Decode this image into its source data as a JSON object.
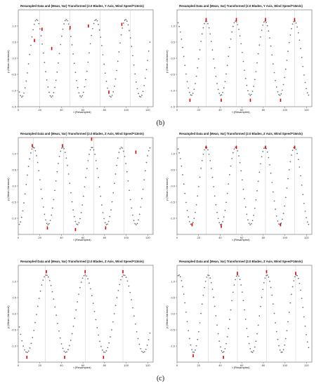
{
  "figure_labels": {
    "b": "(b)",
    "c": "(c)"
  },
  "chart_data": [
    {
      "type": "scatter",
      "title": "Resampled Data and (Mean, Var) Transformed (2.0 Blades, Y Axis, Wind Speed=13m/s)",
      "xlabel": "t (Resampled)",
      "ylabel": "y (Mean-Variance)",
      "xlim": [
        0,
        125
      ],
      "ylim": [
        -1.5,
        1.5
      ],
      "xticks": [
        0,
        20,
        40,
        60,
        80,
        100,
        120
      ],
      "yticks": [
        -1.5,
        -1.0,
        -0.5,
        0.0,
        0.5,
        1.0
      ],
      "vlines": [
        20,
        48,
        76,
        104
      ],
      "points": 115,
      "period": 27.5,
      "phase": 17,
      "amplitude": 1.2,
      "red_points": [
        [
          15,
          0.55
        ],
        [
          22,
          0.9
        ],
        [
          31,
          0.3
        ],
        [
          48,
          0.95
        ],
        [
          65,
          1.0
        ],
        [
          84,
          -1.05
        ],
        [
          96,
          1.05
        ]
      ]
    },
    {
      "type": "scatter",
      "title": "Resampled Data and (Mean, Var) Transformed (2.0 Blades, Y Axis, Wind Speed=16m/s)",
      "xlabel": "t (Resampled)",
      "ylabel": "y (Mean-Variance)",
      "xlim": [
        0,
        125
      ],
      "ylim": [
        -1.5,
        1.5
      ],
      "xticks": [
        0,
        20,
        40,
        60,
        80,
        100,
        120
      ],
      "yticks": [
        -1.5,
        -1.0,
        -0.5,
        0.0,
        0.5,
        1.0
      ],
      "vlines": [
        27,
        55,
        82,
        109
      ],
      "points": 115,
      "period": 27.3,
      "phase": 27,
      "amplitude": 1.15,
      "red_points": [
        [
          12,
          -1.3
        ],
        [
          27,
          1.2
        ],
        [
          41,
          -1.3
        ],
        [
          55,
          1.2
        ],
        [
          68,
          -1.3
        ],
        [
          82,
          1.2
        ],
        [
          96,
          -1.3
        ],
        [
          109,
          1.2
        ]
      ]
    },
    {
      "type": "scatter",
      "title": "Resampled Data and (Mean, Var) Transformed (2.0 Blades, Z Axis, Wind Speed=13m/s)",
      "xlabel": "t (Resampled)",
      "ylabel": "y (Mean-Variance)",
      "xlim": [
        0,
        125
      ],
      "ylim": [
        -1.5,
        1.5
      ],
      "xticks": [
        0,
        20,
        40,
        60,
        80,
        100,
        120
      ],
      "yticks": [
        -1.0,
        -0.5,
        0.0,
        0.5,
        1.0
      ],
      "vlines": [
        14,
        42,
        70,
        98,
        124
      ],
      "points": 115,
      "period": 27.2,
      "phase": 14,
      "amplitude": 1.2,
      "red_points": [
        [
          13,
          1.25
        ],
        [
          27,
          -1.3
        ],
        [
          41,
          1.25
        ],
        [
          53,
          -1.35
        ],
        [
          68,
          1.45
        ],
        [
          81,
          -1.3
        ],
        [
          109,
          1.05
        ]
      ]
    },
    {
      "type": "scatter",
      "title": "Resampled Data and (Mean, Var) Transformed (2.0 Blades, Z Axis, Wind Speed=16m/s)",
      "xlabel": "t (Resampled)",
      "ylabel": "y (Mean-Variance)",
      "xlim": [
        0,
        125
      ],
      "ylim": [
        -1.5,
        1.5
      ],
      "xticks": [
        0,
        20,
        40,
        60,
        80,
        100,
        120
      ],
      "yticks": [
        -1.0,
        -0.5,
        0.0,
        0.5,
        1.0
      ],
      "vlines": [
        27,
        55,
        82,
        109
      ],
      "points": 115,
      "period": 27.3,
      "phase": 27,
      "amplitude": 1.2,
      "red_points": [
        [
          14,
          -1.2
        ],
        [
          27,
          1.2
        ],
        [
          41,
          -1.25
        ],
        [
          55,
          1.2
        ],
        [
          82,
          1.2
        ],
        [
          96,
          -1.2
        ],
        [
          109,
          1.2
        ]
      ]
    },
    {
      "type": "scatter",
      "title": "Resampled Data and (Mean, Var) Transformed (2.0 Blades, Z Axis, Wind Speed=13m/s)",
      "xlabel": "t (Resampled)",
      "ylabel": "y (Mean-Variance)",
      "xlim": [
        0,
        125
      ],
      "ylim": [
        -1.5,
        1.5
      ],
      "xticks": [
        0,
        20,
        40,
        60,
        80,
        100,
        120
      ],
      "yticks": [
        -1.0,
        -0.5,
        0.0,
        0.5,
        1.0
      ],
      "vlines": [
        25,
        62,
        97
      ],
      "points": 100,
      "period": 36,
      "phase": 26,
      "amplitude": 1.2,
      "red_points": [
        [
          8,
          -1.35
        ],
        [
          26,
          1.3
        ],
        [
          43,
          -1.35
        ],
        [
          62,
          1.3
        ],
        [
          79,
          -1.35
        ],
        [
          97,
          1.3
        ]
      ]
    },
    {
      "type": "scatter",
      "title": "Resampled Data and (Mean, Var) Transformed (2.0 Blades, Z Axis, Wind Speed=16m/s)",
      "xlabel": "t (Resampled)",
      "ylabel": "y (Mean-Variance)",
      "xlim": [
        0,
        125
      ],
      "ylim": [
        -1.5,
        1.5
      ],
      "xticks": [
        0,
        20,
        40,
        60,
        80,
        100,
        120
      ],
      "yticks": [
        -1.0,
        -0.5,
        0.0,
        0.5,
        1.0
      ],
      "vlines": [
        29,
        56,
        83,
        110
      ],
      "points": 115,
      "period": 27.2,
      "phase": 29,
      "amplitude": 1.2,
      "red_points": [
        [
          15,
          -1.3
        ],
        [
          43,
          -1.35
        ],
        [
          56,
          1.25
        ],
        [
          83,
          1.3
        ],
        [
          110,
          1.25
        ]
      ]
    }
  ]
}
